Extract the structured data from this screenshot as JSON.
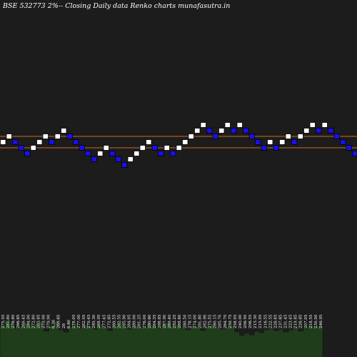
{
  "title": "BSE 532773 2%-- Closing Daily data  Renko  charts munafasutra.in",
  "colors": {
    "background": "#1c1c1c",
    "up_brick": "#ffffff",
    "down_brick": "#1a10e8",
    "brick_border": "#000000",
    "reference_line": "#d2691e",
    "volume_fill": "#1f3d1b",
    "volume_outline": "#151515",
    "label": "#ffffff"
  },
  "chart_data": {
    "type": "renko",
    "box_size_percent": 2,
    "reference_lines": [
      1,
      -1
    ],
    "bricks": [
      {
        "dir": "up",
        "level": 0
      },
      {
        "dir": "up",
        "level": 1
      },
      {
        "dir": "down",
        "level": 0
      },
      {
        "dir": "down",
        "level": -1
      },
      {
        "dir": "down",
        "level": -2
      },
      {
        "dir": "up",
        "level": -1
      },
      {
        "dir": "up",
        "level": 0
      },
      {
        "dir": "up",
        "level": 1
      },
      {
        "dir": "down",
        "level": 0
      },
      {
        "dir": "up",
        "level": 1
      },
      {
        "dir": "up",
        "level": 2
      },
      {
        "dir": "down",
        "level": 1
      },
      {
        "dir": "down",
        "level": 0
      },
      {
        "dir": "down",
        "level": -1
      },
      {
        "dir": "down",
        "level": -2
      },
      {
        "dir": "down",
        "level": -3
      },
      {
        "dir": "up",
        "level": -2
      },
      {
        "dir": "up",
        "level": -1
      },
      {
        "dir": "down",
        "level": -2
      },
      {
        "dir": "down",
        "level": -3
      },
      {
        "dir": "down",
        "level": -4
      },
      {
        "dir": "up",
        "level": -3
      },
      {
        "dir": "up",
        "level": -2
      },
      {
        "dir": "up",
        "level": -1
      },
      {
        "dir": "up",
        "level": 0
      },
      {
        "dir": "down",
        "level": -1
      },
      {
        "dir": "down",
        "level": -2
      },
      {
        "dir": "up",
        "level": -1
      },
      {
        "dir": "down",
        "level": -2
      },
      {
        "dir": "up",
        "level": -1
      },
      {
        "dir": "up",
        "level": 0
      },
      {
        "dir": "up",
        "level": 1
      },
      {
        "dir": "up",
        "level": 2
      },
      {
        "dir": "up",
        "level": 3
      },
      {
        "dir": "down",
        "level": 2
      },
      {
        "dir": "down",
        "level": 1
      },
      {
        "dir": "up",
        "level": 2
      },
      {
        "dir": "up",
        "level": 3
      },
      {
        "dir": "down",
        "level": 2
      },
      {
        "dir": "up",
        "level": 3
      },
      {
        "dir": "down",
        "level": 2
      },
      {
        "dir": "down",
        "level": 1
      },
      {
        "dir": "down",
        "level": 0
      },
      {
        "dir": "down",
        "level": -1
      },
      {
        "dir": "up",
        "level": 0
      },
      {
        "dir": "down",
        "level": -1
      },
      {
        "dir": "up",
        "level": 0
      },
      {
        "dir": "up",
        "level": 1
      },
      {
        "dir": "down",
        "level": 0
      },
      {
        "dir": "up",
        "level": 1
      },
      {
        "dir": "up",
        "level": 2
      },
      {
        "dir": "up",
        "level": 3
      },
      {
        "dir": "down",
        "level": 2
      },
      {
        "dir": "up",
        "level": 3
      },
      {
        "dir": "down",
        "level": 2
      },
      {
        "dir": "down",
        "level": 1
      },
      {
        "dir": "down",
        "level": 0
      },
      {
        "dir": "down",
        "level": -1
      },
      {
        "dir": "down",
        "level": -2
      },
      {
        "dir": "up",
        "level": -1
      },
      {
        "dir": "up",
        "level": 0
      },
      {
        "dir": "down",
        "level": -1
      },
      {
        "dir": "up",
        "level": 0
      }
    ],
    "price_labels": [
      "275.55",
      "281.80",
      "276.80",
      "266.65",
      "269.45",
      "284.00",
      "272.80",
      "283.85",
      "273.00",
      "279.90",
      "6.30",
      "269.65",
      "28",
      "6.60",
      "278.05",
      "277.00",
      "282.05",
      "279.45",
      "285.30",
      "288.95",
      "277.45",
      "272.65",
      "269.55",
      "282.55",
      "285.90",
      "284.95",
      "289.00",
      "281.25",
      "276.00",
      "280.60",
      "284.35",
      "288.85",
      "287.90",
      "289.40",
      "282.25",
      "288.80",
      "280.50",
      "278.15",
      "274.00",
      "281.80",
      "282.90",
      "275.55",
      "280.15",
      "285.70",
      "264.70",
      "259.75",
      "258.95",
      "240.00",
      "206.50",
      "206.55",
      "213.30",
      "215.95",
      "216.55",
      "222.55",
      "226.85",
      "237.65",
      "231.45",
      "223.45",
      "219.85",
      "226.85",
      "207.05",
      "218.55",
      "230.90",
      "246.95"
    ],
    "volume": [
      44,
      52,
      47,
      40,
      43,
      48,
      44,
      46,
      49,
      36,
      44,
      50,
      38,
      35,
      42,
      47,
      40,
      45,
      43,
      39,
      46,
      41,
      37,
      44,
      48,
      42,
      39,
      45,
      43,
      41,
      47,
      44,
      40,
      46,
      48,
      43,
      45,
      40,
      38,
      44,
      42,
      37,
      43,
      46,
      41,
      39,
      42,
      44,
      35,
      30,
      33,
      31,
      36,
      34,
      38,
      40,
      37,
      39,
      35,
      38,
      42,
      36,
      40,
      45,
      43,
      44
    ]
  }
}
